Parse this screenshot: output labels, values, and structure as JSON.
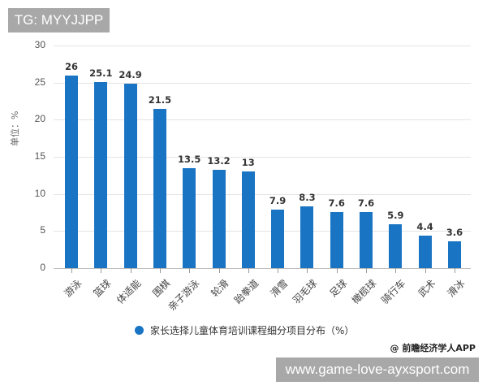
{
  "badge": {
    "text": "TG: MYYJJPP"
  },
  "watermark_url": {
    "text": "www.game-love-ayxsport.com"
  },
  "source": {
    "text": "@ 前瞻经济学人APP"
  },
  "legend": {
    "label": "家长选择儿童体育培训课程细分项目分布（%）",
    "color": "#1a74c4"
  },
  "y_axis": {
    "label": "单位：%",
    "ticks": [
      "0",
      "5",
      "10",
      "15",
      "20",
      "25",
      "30"
    ]
  },
  "chart_data": {
    "type": "bar",
    "title": "",
    "xlabel": "",
    "ylabel": "单位：%",
    "ylim": [
      0,
      30
    ],
    "grid": true,
    "legend_position": "bottom",
    "categories": [
      "游泳",
      "篮球",
      "体适能",
      "围棋",
      "亲子游泳",
      "轮滑",
      "跆拳道",
      "滑雪",
      "羽毛球",
      "足球",
      "橄榄球",
      "骑行车",
      "武术",
      "滑冰"
    ],
    "series": [
      {
        "name": "家长选择儿童体育培训课程细分项目分布（%）",
        "color": "#1a74c4",
        "values": [
          26,
          25.1,
          24.9,
          21.5,
          13.5,
          13.2,
          13,
          7.9,
          8.3,
          7.6,
          7.6,
          5.9,
          4.4,
          3.6
        ]
      }
    ],
    "value_labels": [
      "26",
      "25.1",
      "24.9",
      "21.5",
      "13.5",
      "13.2",
      "13",
      "7.9",
      "8.3",
      "7.6",
      "7.6",
      "5.9",
      "4.4",
      "3.6"
    ]
  }
}
